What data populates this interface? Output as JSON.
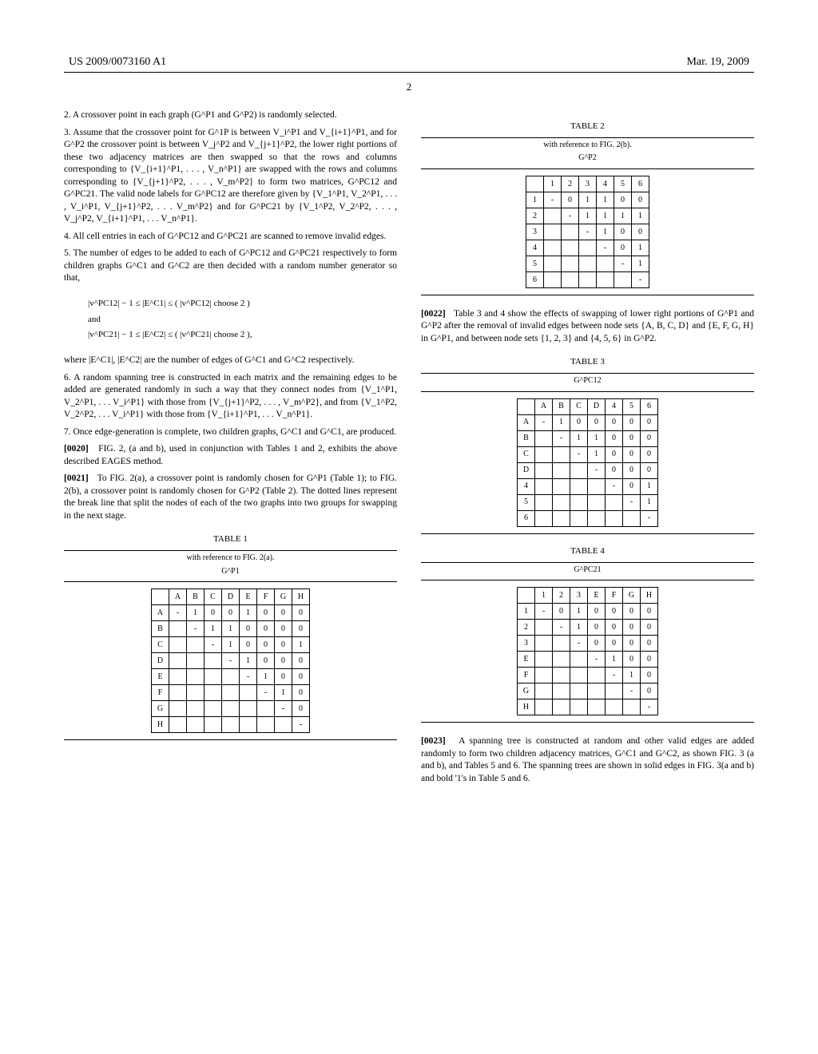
{
  "header": {
    "pub_number": "US 2009/0073160 A1",
    "pub_date": "Mar. 19, 2009"
  },
  "page_number": "2",
  "left": {
    "step2": "2. A crossover point in each graph (G^P1 and G^P2) is randomly selected.",
    "step3": "3. Assume that the crossover point for G^1P is between V_i^P1 and V_{i+1}^P1, and for G^P2 the crossover point is between V_j^P2 and V_{j+1}^P2, the lower right portions of these two adjacency matrices are then swapped so that the rows and columns corresponding to {V_{i+1}^P1, . . . , V_n^P1} are swapped with the rows and columns corresponding to {V_{j+1}^P2, . . . , V_m^P2} to form two matrices, G^PC12 and G^PC21. The valid node labels for G^PC12 are therefore given by {V_1^P1, V_2^P1, . . . , V_i^P1, V_{j+1}^P2, . . . V_m^P2} and for G^PC21 by {V_1^P2, V_2^P2, . . . , V_j^P2, V_{i+1}^P1, . . . V_n^P1}.",
    "step4": "4. All cell entries in each of G^PC12 and G^PC21 are scanned to remove invalid edges.",
    "step5": "5. The number of edges to be added to each of G^PC12 and G^PC21 respectively to form children graphs G^C1 and G^C2 are then decided with a random number generator so that,",
    "formula1": "|v^PC12| − 1 ≤ |E^C1| ≤ ( |v^PC12| choose 2 )",
    "formula_and": "and",
    "formula2": "|v^PC21| − 1 ≤ |E^C2| ≤ ( |v^PC21| choose 2 ),",
    "where": "where |E^C1|, |E^C2| are the number of edges of G^C1 and G^C2 respectively.",
    "step6": "6. A random spanning tree is constructed in each matrix and the remaining edges to be added are generated randomly in such a way that they connect nodes from {V_1^P1, V_2^P1, . . . V_i^P1} with those from {V_{j+1}^P2, . . . , V_m^P2}, and from {V_1^P2, V_2^P2, . . . V_i^P1} with those from {V_{i+1}^P1, . . . V_n^P1}.",
    "step7": "7. Once edge-generation is complete, two children graphs, G^C1 and G^C1, are produced.",
    "p0020": "FIG. 2, (a and b), used in conjunction with Tables 1 and 2, exhibits the above described EAGES method.",
    "p0020_num": "[0020]",
    "p0021": "To FIG. 2(a), a crossover point is randomly chosen for G^P1 (Table 1); to FIG. 2(b), a crossover point is randomly chosen for G^P2 (Table 2). The dotted lines represent the break line that split the nodes of each of the two graphs into two groups for swapping in the next stage.",
    "p0021_num": "[0021]",
    "table1": {
      "label": "TABLE 1",
      "caption": "with reference to FIG. 2(a).",
      "name": "G^P1",
      "cols": [
        "",
        "A",
        "B",
        "C",
        "D",
        "E",
        "F",
        "G",
        "H"
      ],
      "rows": [
        [
          "A",
          "-",
          "1",
          "0",
          "0",
          "1",
          "0",
          "0",
          "0"
        ],
        [
          "B",
          "",
          "-",
          "1",
          "1",
          "0",
          "0",
          "0",
          "0"
        ],
        [
          "C",
          "",
          "",
          "-",
          "1",
          "0",
          "0",
          "0",
          "1"
        ],
        [
          "D",
          "",
          "",
          "",
          "-",
          "1",
          "0",
          "0",
          "0"
        ],
        [
          "E",
          "",
          "",
          "",
          "",
          "-",
          "1",
          "0",
          "0"
        ],
        [
          "F",
          "",
          "",
          "",
          "",
          "",
          "-",
          "1",
          "0"
        ],
        [
          "G",
          "",
          "",
          "",
          "",
          "",
          "",
          "-",
          "0"
        ],
        [
          "H",
          "",
          "",
          "",
          "",
          "",
          "",
          "",
          "-"
        ]
      ],
      "break_col": 4,
      "break_row": 4
    }
  },
  "right": {
    "table2": {
      "label": "TABLE 2",
      "caption": "with reference to FIG. 2(b).",
      "name": "G^P2",
      "cols": [
        "",
        "1",
        "2",
        "3",
        "4",
        "5",
        "6"
      ],
      "rows": [
        [
          "1",
          "-",
          "0",
          "1",
          "1",
          "0",
          "0"
        ],
        [
          "2",
          "",
          "-",
          "1",
          "1",
          "1",
          "1"
        ],
        [
          "3",
          "",
          "",
          "-",
          "1",
          "0",
          "0"
        ],
        [
          "4",
          "",
          "",
          "",
          "-",
          "0",
          "1"
        ],
        [
          "5",
          "",
          "",
          "",
          "",
          "-",
          "1"
        ],
        [
          "6",
          "",
          "",
          "",
          "",
          "",
          "-"
        ]
      ],
      "break_col": 3,
      "break_row": 3
    },
    "p0022": "Table 3 and 4 show the effects of swapping of lower right portions of G^P1 and G^P2 after the removal of invalid edges between node sets {A, B, C, D} and {E, F, G, H} in G^P1, and between node sets {1, 2, 3} and {4, 5, 6} in G^P2.",
    "p0022_num": "[0022]",
    "table3": {
      "label": "TABLE 3",
      "name": "G^PC12",
      "cols": [
        "",
        "A",
        "B",
        "C",
        "D",
        "4",
        "5",
        "6"
      ],
      "rows": [
        [
          "A",
          "-",
          "1",
          "0",
          "0",
          "0",
          "0",
          "0"
        ],
        [
          "B",
          "",
          "-",
          "1",
          "1",
          "0",
          "0",
          "0"
        ],
        [
          "C",
          "",
          "",
          "-",
          "1",
          "0",
          "0",
          "0"
        ],
        [
          "D",
          "",
          "",
          "",
          "-",
          "0",
          "0",
          "0"
        ],
        [
          "4",
          "",
          "",
          "",
          "",
          "-",
          "0",
          "1"
        ],
        [
          "5",
          "",
          "",
          "",
          "",
          "",
          "-",
          "1"
        ],
        [
          "6",
          "",
          "",
          "",
          "",
          "",
          "",
          "-"
        ]
      ],
      "break_col": 4,
      "break_row": 4
    },
    "table4": {
      "label": "TABLE 4",
      "name": "G^PC21",
      "cols": [
        "",
        "1",
        "2",
        "3",
        "E",
        "F",
        "G",
        "H"
      ],
      "rows": [
        [
          "1",
          "-",
          "0",
          "1",
          "0",
          "0",
          "0",
          "0"
        ],
        [
          "2",
          "",
          "-",
          "1",
          "0",
          "0",
          "0",
          "0"
        ],
        [
          "3",
          "",
          "",
          "-",
          "0",
          "0",
          "0",
          "0"
        ],
        [
          "E",
          "",
          "",
          "",
          "-",
          "1",
          "0",
          "0"
        ],
        [
          "F",
          "",
          "",
          "",
          "",
          "-",
          "1",
          "0"
        ],
        [
          "G",
          "",
          "",
          "",
          "",
          "",
          "-",
          "0"
        ],
        [
          "H",
          "",
          "",
          "",
          "",
          "",
          "",
          "-"
        ]
      ],
      "break_col": 3,
      "break_row": 3
    },
    "p0023": "A spanning tree is constructed at random and other valid edges are added randomly to form two children adjacency matrices, G^C1 and G^C2, as shown FIG. 3 (a and b), and Tables 5 and 6. The spanning trees are shown in solid edges in FIG. 3(a and b) and bold '1's in Table 5 and 6.",
    "p0023_num": "[0023]"
  },
  "style": {
    "background": "#ffffff",
    "text_color": "#000000",
    "font_family": "Times New Roman",
    "body_fontsize": 11.5,
    "header_fontsize": 14,
    "table_fontsize": 10,
    "rule_color": "#000000",
    "dash_color": "#666666"
  }
}
